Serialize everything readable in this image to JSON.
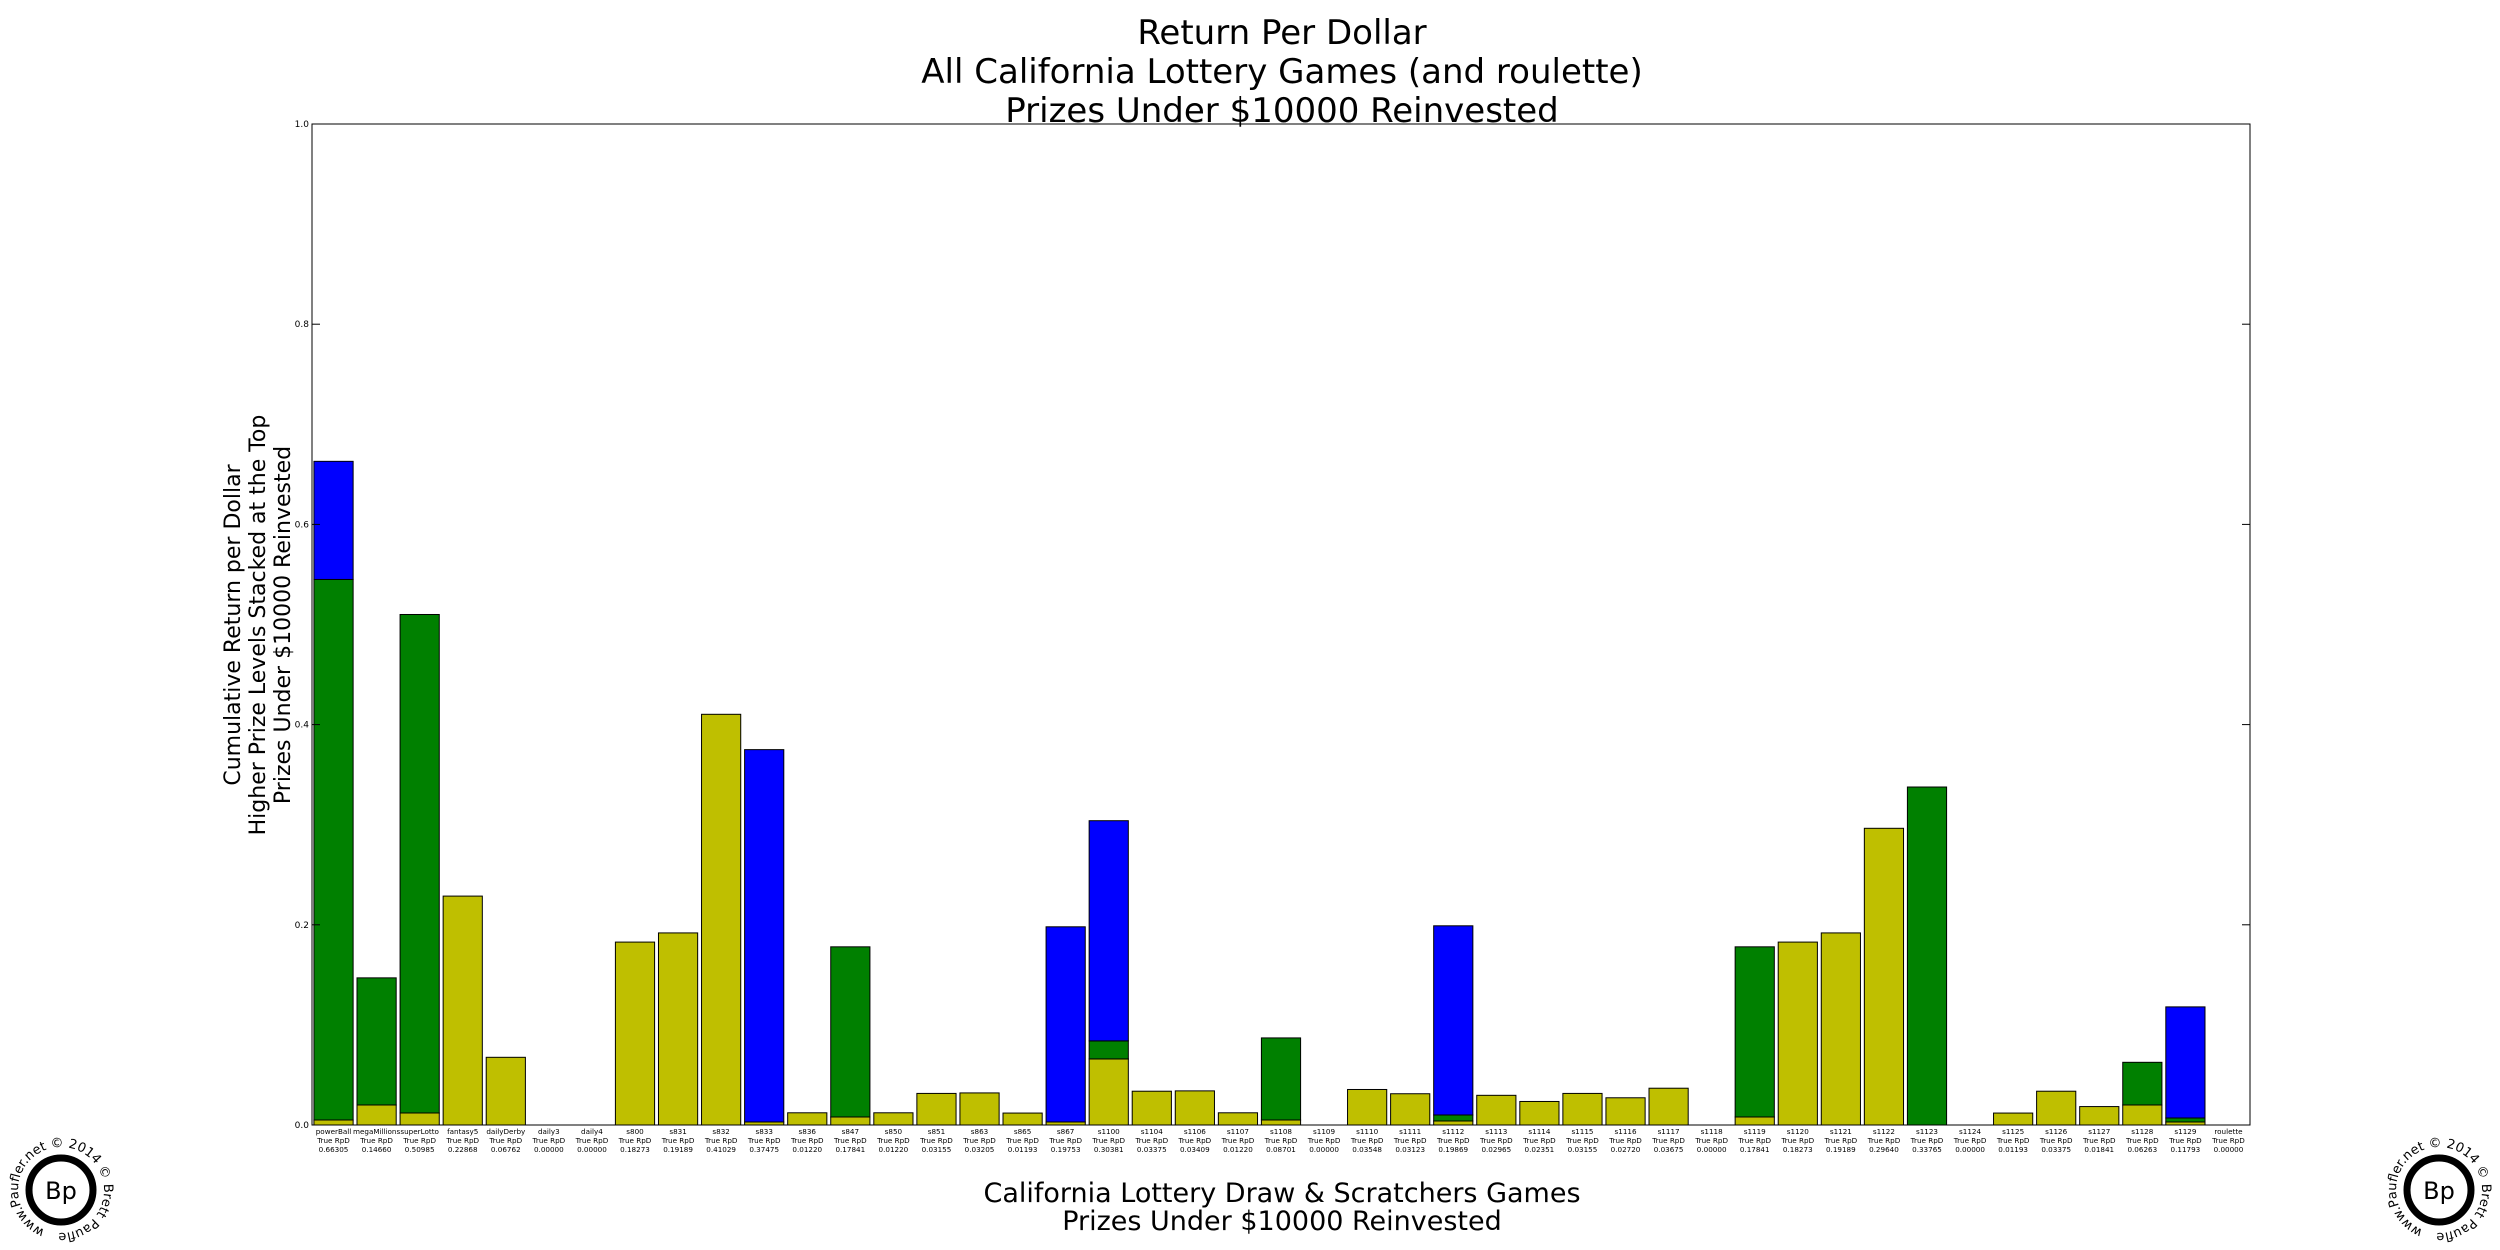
{
  "chart_data": {
    "type": "bar",
    "stacked": true,
    "title": [
      "Return Per Dollar",
      "All California Lottery Games (and roulette)",
      "Prizes Under $10000 Reinvested"
    ],
    "xlabel": [
      "California Lottery Draw & Scratchers Games",
      "Prizes Under $10000 Reinvested"
    ],
    "ylabel": [
      "Cumulative Return per Dollar",
      "Higher Prize Levels Stacked at the Top",
      "Prizes Under $10000 Reinvested"
    ],
    "ylim": [
      0,
      1.0
    ],
    "yticks": [
      "0.0",
      "0.2",
      "0.4",
      "0.6",
      "0.8",
      "1.0"
    ],
    "grid": false,
    "colors": {
      "yellow": "#bfbf00",
      "green": "#008000",
      "blue": "#0000ff"
    },
    "value_prefix": "True RpD",
    "categories": [
      {
        "name": "powerBall",
        "rpd": "0.66305",
        "segments": [
          {
            "color": "yellow",
            "value": 0.005
          },
          {
            "color": "green",
            "value": 0.54
          },
          {
            "color": "blue",
            "value": 0.118
          }
        ]
      },
      {
        "name": "megaMillions",
        "rpd": "0.14660",
        "segments": [
          {
            "color": "yellow",
            "value": 0.02
          },
          {
            "color": "green",
            "value": 0.127
          }
        ]
      },
      {
        "name": "superLotto",
        "rpd": "0.50985",
        "segments": [
          {
            "color": "yellow",
            "value": 0.012
          },
          {
            "color": "green",
            "value": 0.498
          }
        ]
      },
      {
        "name": "fantasy5",
        "rpd": "0.22868",
        "segments": [
          {
            "color": "yellow",
            "value": 0.22868
          }
        ]
      },
      {
        "name": "dailyDerby",
        "rpd": "0.06762",
        "segments": [
          {
            "color": "yellow",
            "value": 0.06762
          }
        ]
      },
      {
        "name": "daily3",
        "rpd": "0.00000",
        "segments": []
      },
      {
        "name": "daily4",
        "rpd": "0.00000",
        "segments": []
      },
      {
        "name": "s800",
        "rpd": "0.18273",
        "segments": [
          {
            "color": "yellow",
            "value": 0.18273
          }
        ]
      },
      {
        "name": "s831",
        "rpd": "0.19189",
        "segments": [
          {
            "color": "yellow",
            "value": 0.19189
          }
        ]
      },
      {
        "name": "s832",
        "rpd": "0.41029",
        "segments": [
          {
            "color": "yellow",
            "value": 0.41029
          }
        ]
      },
      {
        "name": "s833",
        "rpd": "0.37475",
        "segments": [
          {
            "color": "yellow",
            "value": 0.003
          },
          {
            "color": "blue",
            "value": 0.372
          }
        ]
      },
      {
        "name": "s836",
        "rpd": "0.01220",
        "segments": [
          {
            "color": "yellow",
            "value": 0.0122
          }
        ]
      },
      {
        "name": "s847",
        "rpd": "0.17841",
        "segments": [
          {
            "color": "yellow",
            "value": 0.008
          },
          {
            "color": "green",
            "value": 0.17
          }
        ]
      },
      {
        "name": "s850",
        "rpd": "0.01220",
        "segments": [
          {
            "color": "yellow",
            "value": 0.0122
          }
        ]
      },
      {
        "name": "s851",
        "rpd": "0.03155",
        "segments": [
          {
            "color": "yellow",
            "value": 0.03155
          }
        ]
      },
      {
        "name": "s863",
        "rpd": "0.03205",
        "segments": [
          {
            "color": "yellow",
            "value": 0.03205
          }
        ]
      },
      {
        "name": "s865",
        "rpd": "0.01193",
        "segments": [
          {
            "color": "yellow",
            "value": 0.01193
          }
        ]
      },
      {
        "name": "s867",
        "rpd": "0.19753",
        "segments": [
          {
            "color": "yellow",
            "value": 0.003
          },
          {
            "color": "blue",
            "value": 0.195
          }
        ]
      },
      {
        "name": "s1100",
        "rpd": "0.30381",
        "segments": [
          {
            "color": "yellow",
            "value": 0.066
          },
          {
            "color": "green",
            "value": 0.018
          },
          {
            "color": "blue",
            "value": 0.22
          }
        ]
      },
      {
        "name": "s1104",
        "rpd": "0.03375",
        "segments": [
          {
            "color": "yellow",
            "value": 0.03375
          }
        ]
      },
      {
        "name": "s1106",
        "rpd": "0.03409",
        "segments": [
          {
            "color": "yellow",
            "value": 0.03409
          }
        ]
      },
      {
        "name": "s1107",
        "rpd": "0.01220",
        "segments": [
          {
            "color": "yellow",
            "value": 0.0122
          }
        ]
      },
      {
        "name": "s1108",
        "rpd": "0.08701",
        "segments": [
          {
            "color": "yellow",
            "value": 0.005
          },
          {
            "color": "green",
            "value": 0.082
          }
        ]
      },
      {
        "name": "s1109",
        "rpd": "0.00000",
        "segments": []
      },
      {
        "name": "s1110",
        "rpd": "0.03548",
        "segments": [
          {
            "color": "yellow",
            "value": 0.03548
          }
        ]
      },
      {
        "name": "s1111",
        "rpd": "0.03123",
        "segments": [
          {
            "color": "yellow",
            "value": 0.03123
          }
        ]
      },
      {
        "name": "s1112",
        "rpd": "0.19869",
        "segments": [
          {
            "color": "yellow",
            "value": 0.004
          },
          {
            "color": "green",
            "value": 0.006
          },
          {
            "color": "blue",
            "value": 0.189
          }
        ]
      },
      {
        "name": "s1113",
        "rpd": "0.02965",
        "segments": [
          {
            "color": "yellow",
            "value": 0.02965
          }
        ]
      },
      {
        "name": "s1114",
        "rpd": "0.02351",
        "segments": [
          {
            "color": "yellow",
            "value": 0.02351
          }
        ]
      },
      {
        "name": "s1115",
        "rpd": "0.03155",
        "segments": [
          {
            "color": "yellow",
            "value": 0.03155
          }
        ]
      },
      {
        "name": "s1116",
        "rpd": "0.02720",
        "segments": [
          {
            "color": "yellow",
            "value": 0.0272
          }
        ]
      },
      {
        "name": "s1117",
        "rpd": "0.03675",
        "segments": [
          {
            "color": "yellow",
            "value": 0.03675
          }
        ]
      },
      {
        "name": "s1118",
        "rpd": "0.00000",
        "segments": []
      },
      {
        "name": "s1119",
        "rpd": "0.17841",
        "segments": [
          {
            "color": "yellow",
            "value": 0.008
          },
          {
            "color": "green",
            "value": 0.17
          }
        ]
      },
      {
        "name": "s1120",
        "rpd": "0.18273",
        "segments": [
          {
            "color": "yellow",
            "value": 0.18273
          }
        ]
      },
      {
        "name": "s1121",
        "rpd": "0.19189",
        "segments": [
          {
            "color": "yellow",
            "value": 0.19189
          }
        ]
      },
      {
        "name": "s1122",
        "rpd": "0.29640",
        "segments": [
          {
            "color": "yellow",
            "value": 0.2964
          }
        ]
      },
      {
        "name": "s1123",
        "rpd": "0.33765",
        "segments": [
          {
            "color": "green",
            "value": 0.33765
          }
        ]
      },
      {
        "name": "s1124",
        "rpd": "0.00000",
        "segments": []
      },
      {
        "name": "s1125",
        "rpd": "0.01193",
        "segments": [
          {
            "color": "yellow",
            "value": 0.01193
          }
        ]
      },
      {
        "name": "s1126",
        "rpd": "0.03375",
        "segments": [
          {
            "color": "yellow",
            "value": 0.03375
          }
        ]
      },
      {
        "name": "s1127",
        "rpd": "0.01841",
        "segments": [
          {
            "color": "yellow",
            "value": 0.01841
          }
        ]
      },
      {
        "name": "s1128",
        "rpd": "0.06263",
        "segments": [
          {
            "color": "yellow",
            "value": 0.02
          },
          {
            "color": "green",
            "value": 0.04263
          }
        ]
      },
      {
        "name": "s1129",
        "rpd": "0.11793",
        "segments": [
          {
            "color": "yellow",
            "value": 0.003
          },
          {
            "color": "green",
            "value": 0.004
          },
          {
            "color": "blue",
            "value": 0.111
          }
        ]
      },
      {
        "name": "roulette",
        "rpd": "0.00000",
        "segments": []
      }
    ]
  },
  "logo": {
    "mark": "Bp",
    "ring_text": "www.Paufler.net © 2014 © Brett Paufler ©"
  }
}
